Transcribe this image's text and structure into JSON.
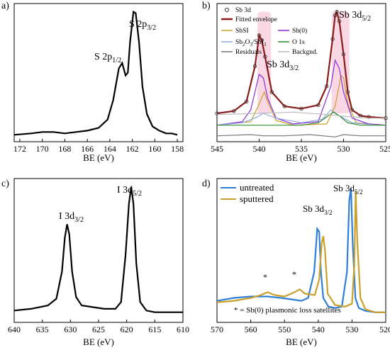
{
  "chart_data": [
    {
      "panel": "a)",
      "type": "line",
      "xlabel": "BE (eV)",
      "ylabel": "",
      "xlim": [
        172.5,
        157.5
      ],
      "x_reversed": true,
      "xticks": [
        172,
        170,
        168,
        166,
        164,
        162,
        160,
        158
      ],
      "annotations": [
        {
          "main": "S 2p",
          "sub": "3/2"
        },
        {
          "main": "S 2p",
          "sub": "1/2"
        }
      ],
      "series": [
        {
          "color": "#000000",
          "x": [
            172.5,
            171,
            170,
            169,
            168,
            167,
            166,
            165,
            164.2,
            163.7,
            163.2,
            162.9,
            162.6,
            162.4,
            162.2,
            161.9,
            161.7,
            161.4,
            161.1,
            160.7,
            160.2,
            159.6,
            159,
            158.5,
            158
          ],
          "y": [
            0.05,
            0.06,
            0.07,
            0.07,
            0.06,
            0.07,
            0.08,
            0.1,
            0.16,
            0.3,
            0.53,
            0.57,
            0.48,
            0.5,
            0.72,
            0.94,
            0.93,
            0.72,
            0.4,
            0.2,
            0.11,
            0.08,
            0.06,
            0.06,
            0.05
          ]
        }
      ]
    },
    {
      "panel": "b)",
      "type": "line",
      "xlabel": "BE (eV)",
      "xlim": [
        545,
        525
      ],
      "x_reversed": true,
      "xticks": [
        545,
        540,
        535,
        530,
        525
      ],
      "annotations": [
        {
          "main": "Sb 3d",
          "sub": "5/2"
        },
        {
          "main": "Sb 3d",
          "sub": "3/2"
        }
      ],
      "legend": [
        {
          "label": "Sb 3d",
          "color": "#333333",
          "style": "circle"
        },
        {
          "label": "Fitted envelope",
          "color": "#8b1a1a",
          "style": "line"
        },
        {
          "label": "SbSI",
          "color": "#c8a02a",
          "style": "line"
        },
        {
          "label": "Sb(0)",
          "color": "#8a2be2",
          "style": "line"
        },
        {
          "label": "Sb",
          "sub1": "2",
          "mid": "O",
          "sub2": "3",
          "tail": "/SbI",
          "sub3": "3",
          "color": "#8ea9db",
          "style": "line"
        },
        {
          "label": "O 1s",
          "color": "#2e8b2e",
          "style": "line"
        },
        {
          "label": "Residuals",
          "color": "#777777",
          "style": "line"
        },
        {
          "label": "Backgnd.",
          "color": "#bbbbbb",
          "style": "line"
        }
      ],
      "series": [
        {
          "name": "Sb 3d",
          "color": "#333333",
          "x": [
            545,
            543,
            541.5,
            540.5,
            540,
            539.7,
            539.3,
            538.5,
            537,
            535,
            533,
            532,
            531.3,
            531,
            530.8,
            530.5,
            530,
            529.5,
            529,
            528,
            527,
            525
          ],
          "y": [
            0.12,
            0.14,
            0.22,
            0.52,
            0.78,
            0.74,
            0.6,
            0.3,
            0.18,
            0.16,
            0.19,
            0.35,
            0.75,
            0.95,
            0.98,
            0.9,
            0.62,
            0.3,
            0.15,
            0.1,
            0.09,
            0.08
          ]
        },
        {
          "name": "SbSI",
          "color": "#c8a02a",
          "x": [
            545,
            541,
            540,
            539.4,
            539,
            538,
            536,
            532,
            531,
            530.3,
            530,
            529.5,
            528.5,
            525
          ],
          "y": [
            0.02,
            0.05,
            0.2,
            0.3,
            0.22,
            0.06,
            0.02,
            0.03,
            0.18,
            0.44,
            0.42,
            0.2,
            0.04,
            0.02
          ]
        },
        {
          "name": "Sb(0)",
          "color": "#8a2be2",
          "x": [
            545,
            542,
            541,
            540,
            539.5,
            539,
            538,
            536,
            533,
            531.5,
            531,
            530.5,
            530,
            529,
            527,
            525
          ],
          "y": [
            0.02,
            0.05,
            0.15,
            0.45,
            0.42,
            0.25,
            0.08,
            0.03,
            0.05,
            0.35,
            0.57,
            0.5,
            0.3,
            0.08,
            0.03,
            0.02
          ]
        },
        {
          "name": "Sb2O3/SbI3",
          "color": "#8ea9db",
          "x": [
            545,
            542,
            540.5,
            539.5,
            538,
            535,
            532.5,
            531.5,
            530.5,
            529,
            526,
            525
          ],
          "y": [
            0.02,
            0.04,
            0.08,
            0.12,
            0.08,
            0.04,
            0.07,
            0.15,
            0.1,
            0.04,
            0.02,
            0.02
          ]
        },
        {
          "name": "O 1s",
          "color": "#2e8b2e",
          "x": [
            545,
            535,
            533,
            532,
            531.2,
            530.5,
            529.5,
            528,
            525
          ],
          "y": [
            0.02,
            0.02,
            0.04,
            0.09,
            0.13,
            0.1,
            0.04,
            0.02,
            0.02
          ]
        },
        {
          "name": "Residuals",
          "color": "#777777",
          "x": [
            545,
            541,
            539.5,
            537,
            534,
            531,
            530,
            528,
            525
          ],
          "y": [
            -0.07,
            -0.06,
            -0.07,
            -0.07,
            -0.06,
            -0.08,
            -0.06,
            -0.07,
            -0.07
          ]
        },
        {
          "name": "Backgnd.",
          "color": "#bbbbbb",
          "x": [
            545,
            540,
            536,
            532,
            529,
            527,
            525
          ],
          "y": [
            0.11,
            0.12,
            0.13,
            0.11,
            0.09,
            0.08,
            0.08
          ]
        }
      ]
    },
    {
      "panel": "c)",
      "type": "line",
      "xlabel": "BE (eV)",
      "xlim": [
        640,
        610
      ],
      "x_reversed": true,
      "xticks": [
        640,
        635,
        630,
        625,
        620,
        615,
        610
      ],
      "annotations": [
        {
          "main": "I 3d",
          "sub": "5/2"
        },
        {
          "main": "I 3d",
          "sub": "3/2"
        }
      ],
      "series": [
        {
          "color": "#000000",
          "x": [
            640,
            637,
            634,
            632.5,
            631.5,
            631,
            630.6,
            630.2,
            629.7,
            629,
            628,
            626,
            624,
            622,
            621,
            620.2,
            619.6,
            619.2,
            618.8,
            618.3,
            617.6,
            616.5,
            615,
            612,
            610
          ],
          "y": [
            0.07,
            0.08,
            0.1,
            0.14,
            0.3,
            0.5,
            0.58,
            0.52,
            0.3,
            0.15,
            0.1,
            0.09,
            0.08,
            0.08,
            0.12,
            0.4,
            0.7,
            0.8,
            0.7,
            0.35,
            0.12,
            0.07,
            0.06,
            0.06,
            0.06
          ]
        }
      ]
    },
    {
      "panel": "d)",
      "type": "line",
      "xlabel": "BE (eV)",
      "xlim": [
        570,
        520
      ],
      "x_reversed": true,
      "xticks": [
        570,
        560,
        550,
        540,
        530,
        520
      ],
      "annotations": [
        {
          "main": "Sb 3d",
          "sub": "5/2"
        },
        {
          "main": "Sb 3d",
          "sub": "3/2"
        },
        {
          "main": "*"
        },
        {
          "main": "*"
        },
        {
          "main": "* = Sb(0) plasmonic loss satellites"
        }
      ],
      "series": [
        {
          "name": "untreated",
          "color": "#2f7fd8",
          "x": [
            570,
            565,
            560,
            555,
            551,
            548,
            545,
            543,
            541.2,
            540.3,
            539.7,
            539.2,
            538.5,
            537,
            535,
            533,
            531.5,
            530.8,
            530.3,
            529.8,
            529,
            528,
            526,
            523,
            520
          ],
          "y": [
            0.1,
            0.12,
            0.13,
            0.13,
            0.12,
            0.11,
            0.1,
            0.12,
            0.3,
            0.6,
            0.58,
            0.3,
            0.12,
            0.06,
            0.05,
            0.06,
            0.3,
            0.8,
            0.88,
            0.5,
            0.12,
            0.05,
            0.03,
            0.02,
            0.02
          ]
        },
        {
          "name": "sputtered",
          "color": "#c8a02a",
          "x": [
            570,
            565,
            560,
            557,
            555,
            553,
            550,
            547,
            545.5,
            544,
            541,
            539.7,
            539,
            538.5,
            538,
            537.2,
            535,
            532,
            530,
            529.3,
            528.9,
            528.4,
            527.5,
            526,
            523,
            520
          ],
          "y": [
            0.09,
            0.1,
            0.12,
            0.14,
            0.16,
            0.14,
            0.13,
            0.16,
            0.18,
            0.15,
            0.14,
            0.25,
            0.5,
            0.55,
            0.45,
            0.15,
            0.07,
            0.06,
            0.08,
            0.35,
            0.86,
            0.5,
            0.12,
            0.04,
            0.02,
            0.02
          ]
        }
      ]
    }
  ]
}
